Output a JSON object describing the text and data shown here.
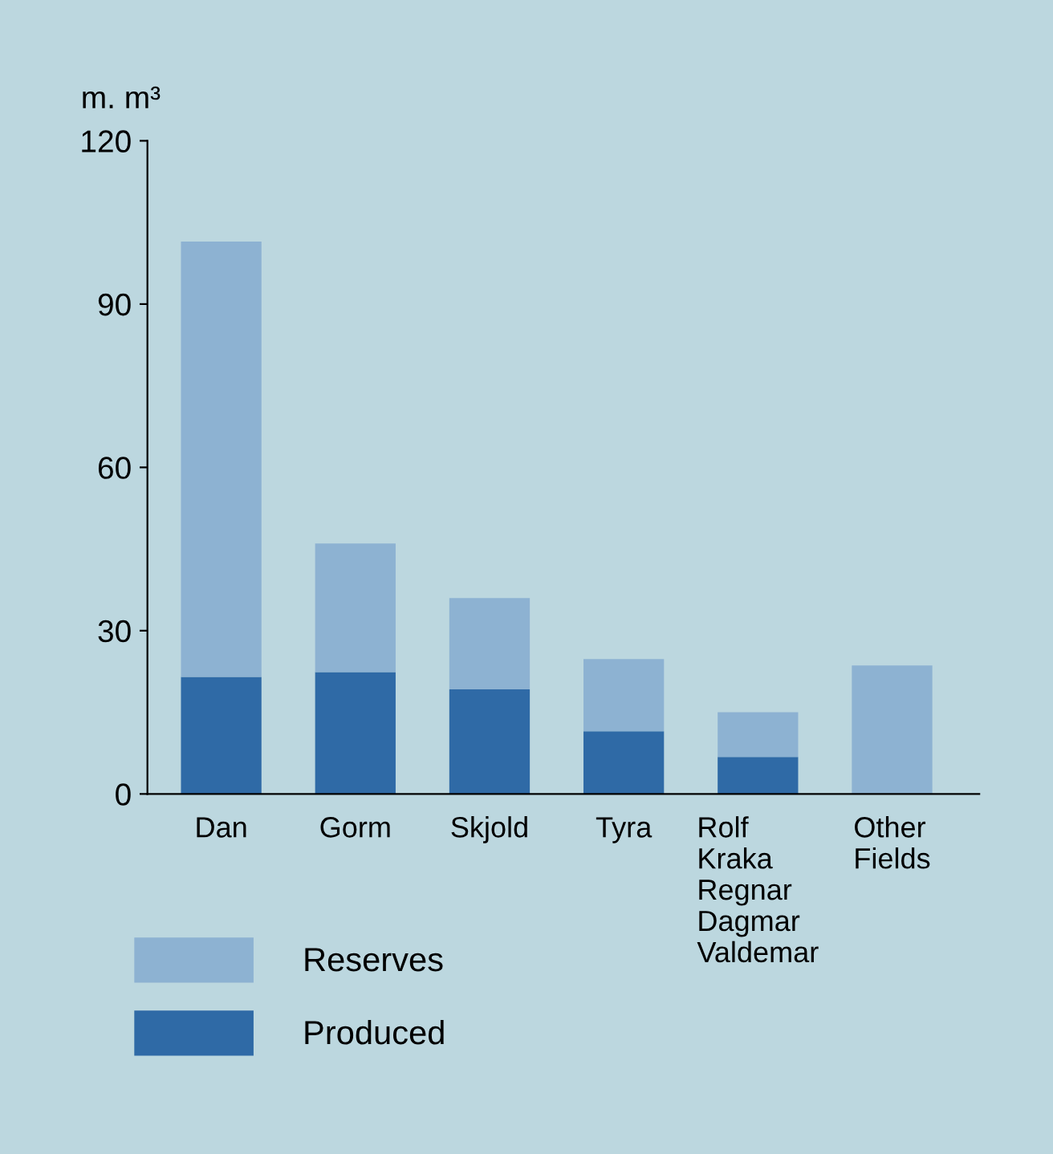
{
  "chart_data": {
    "type": "bar",
    "stacked": true,
    "ylabel": "m. m³",
    "categories": [
      "Dan",
      "Gorm",
      "Skjold",
      "Tyra",
      "Rolf\nKraka\nRegnar\nDagmar\nValdemar",
      "Other\nFields"
    ],
    "series": [
      {
        "name": "Produced",
        "color": "#2f6aa6",
        "values": [
          21.5,
          22.4,
          19.2,
          11.5,
          6.8,
          0
        ]
      },
      {
        "name": "Reserves",
        "color": "#8db2d2",
        "values": [
          80,
          23.6,
          16.8,
          13.3,
          8.2,
          23.6
        ]
      }
    ],
    "ylim": [
      0,
      120
    ],
    "yticks": [
      0,
      30,
      60,
      90,
      120
    ],
    "grid": false,
    "legend": "bottom left"
  }
}
